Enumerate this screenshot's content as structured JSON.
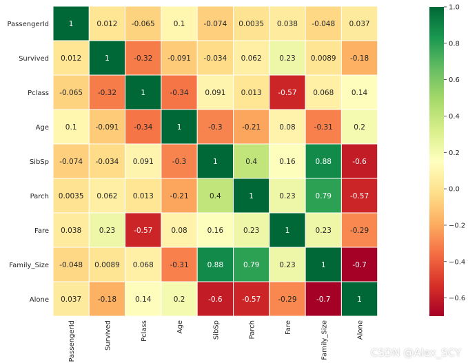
{
  "chart_data": {
    "type": "heatmap",
    "title": "",
    "xlabel": "",
    "ylabel": "",
    "row_labels": [
      "PassengerId",
      "Survived",
      "Pclass",
      "Age",
      "SibSp",
      "Parch",
      "Fare",
      "Family_Size",
      "Alone"
    ],
    "col_labels": [
      "PassengerId",
      "Survived",
      "Pclass",
      "Age",
      "SibSp",
      "Parch",
      "Fare",
      "Family_Size",
      "Alone"
    ],
    "values": [
      [
        1,
        0.012,
        -0.065,
        0.1,
        -0.074,
        0.0035,
        0.038,
        -0.048,
        0.037
      ],
      [
        0.012,
        1,
        -0.32,
        -0.091,
        -0.034,
        0.062,
        0.23,
        0.0089,
        -0.18
      ],
      [
        -0.065,
        -0.32,
        1,
        -0.34,
        0.091,
        0.013,
        -0.57,
        0.068,
        0.14
      ],
      [
        0.1,
        -0.091,
        -0.34,
        1,
        -0.3,
        -0.21,
        0.08,
        -0.31,
        0.2
      ],
      [
        -0.074,
        -0.034,
        0.091,
        -0.3,
        1,
        0.4,
        0.16,
        0.88,
        -0.6
      ],
      [
        0.0035,
        0.062,
        0.013,
        -0.21,
        0.4,
        1,
        0.23,
        0.79,
        -0.57
      ],
      [
        0.038,
        0.23,
        -0.57,
        0.08,
        0.16,
        0.23,
        1,
        0.23,
        -0.29
      ],
      [
        -0.048,
        0.0089,
        0.068,
        -0.31,
        0.88,
        0.79,
        0.23,
        1,
        -0.7
      ],
      [
        0.037,
        -0.18,
        0.14,
        0.2,
        -0.6,
        -0.57,
        -0.29,
        -0.7,
        1
      ]
    ],
    "colormap": "RdYlGn",
    "vmin": -0.7,
    "vmax": 1.0,
    "colorbar_ticks": [
      1.0,
      0.8,
      0.6,
      0.4,
      0.2,
      0.0,
      -0.2,
      -0.4,
      -0.6
    ],
    "colorbar_tick_labels": [
      "1.0",
      "0.8",
      "0.6",
      "0.4",
      "0.2",
      "0.0",
      "−0.2",
      "−0.4",
      "−0.6"
    ],
    "annotated": true,
    "legend": "colorbar-right"
  },
  "watermark": "CSDN @Alex_SCY"
}
